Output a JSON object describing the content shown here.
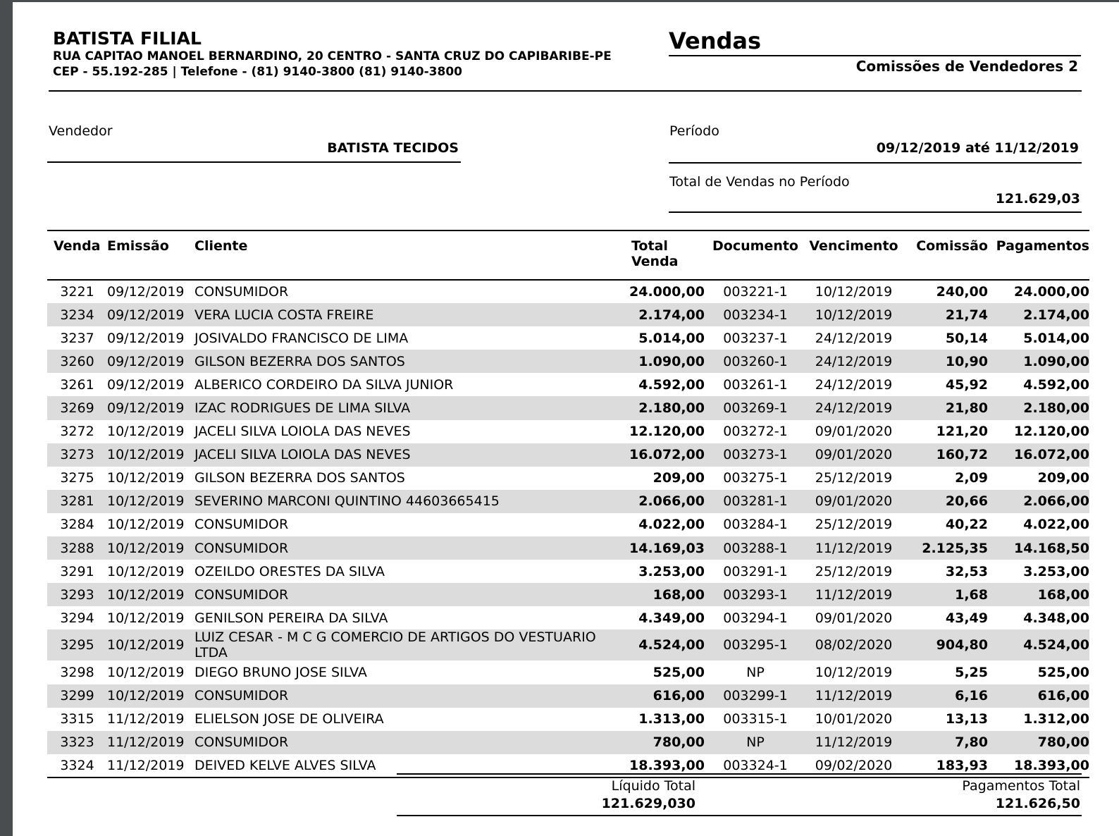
{
  "company": {
    "name": "BATISTA FILIAL",
    "address": "RUA CAPITAO MANOEL BERNARDINO, 20 CENTRO - SANTA CRUZ DO CAPIBARIBE-PE",
    "contact": "CEP - 55.192-285 | Telefone - (81) 9140-3800 (81) 9140-3800"
  },
  "report": {
    "title": "Vendas",
    "subtitle": "Comissões de Vendedores 2"
  },
  "seller": {
    "label": "Vendedor",
    "value": "BATISTA TECIDOS"
  },
  "period": {
    "label": "Período",
    "value": "09/12/2019 até 11/12/2019"
  },
  "total_sales": {
    "label": "Total de Vendas no Período",
    "value": "121.629,03"
  },
  "table": {
    "headers": [
      "Venda",
      "Emissão",
      "Cliente",
      "Total Venda",
      "Documento",
      "Vencimento",
      "Comissão",
      "Pagamentos"
    ],
    "rows": [
      [
        "3221",
        "09/12/2019",
        "CONSUMIDOR",
        "24.000,00",
        "003221-1",
        "10/12/2019",
        "240,00",
        "24.000,00"
      ],
      [
        "3234",
        "09/12/2019",
        "VERA LUCIA COSTA FREIRE",
        "2.174,00",
        "003234-1",
        "10/12/2019",
        "21,74",
        "2.174,00"
      ],
      [
        "3237",
        "09/12/2019",
        "JOSIVALDO FRANCISCO DE LIMA",
        "5.014,00",
        "003237-1",
        "24/12/2019",
        "50,14",
        "5.014,00"
      ],
      [
        "3260",
        "09/12/2019",
        "GILSON BEZERRA DOS SANTOS",
        "1.090,00",
        "003260-1",
        "24/12/2019",
        "10,90",
        "1.090,00"
      ],
      [
        "3261",
        "09/12/2019",
        "ALBERICO CORDEIRO DA SILVA JUNIOR",
        "4.592,00",
        "003261-1",
        "24/12/2019",
        "45,92",
        "4.592,00"
      ],
      [
        "3269",
        "09/12/2019",
        "IZAC RODRIGUES DE LIMA SILVA",
        "2.180,00",
        "003269-1",
        "24/12/2019",
        "21,80",
        "2.180,00"
      ],
      [
        "3272",
        "10/12/2019",
        "JACELI SILVA LOIOLA DAS NEVES",
        "12.120,00",
        "003272-1",
        "09/01/2020",
        "121,20",
        "12.120,00"
      ],
      [
        "3273",
        "10/12/2019",
        "JACELI SILVA LOIOLA DAS NEVES",
        "16.072,00",
        "003273-1",
        "09/01/2020",
        "160,72",
        "16.072,00"
      ],
      [
        "3275",
        "10/12/2019",
        "GILSON BEZERRA DOS SANTOS",
        "209,00",
        "003275-1",
        "25/12/2019",
        "2,09",
        "209,00"
      ],
      [
        "3281",
        "10/12/2019",
        "SEVERINO MARCONI QUINTINO 44603665415",
        "2.066,00",
        "003281-1",
        "09/01/2020",
        "20,66",
        "2.066,00"
      ],
      [
        "3284",
        "10/12/2019",
        "CONSUMIDOR",
        "4.022,00",
        "003284-1",
        "25/12/2019",
        "40,22",
        "4.022,00"
      ],
      [
        "3288",
        "10/12/2019",
        "CONSUMIDOR",
        "14.169,03",
        "003288-1",
        "11/12/2019",
        "2.125,35",
        "14.168,50"
      ],
      [
        "3291",
        "10/12/2019",
        "OZEILDO ORESTES DA SILVA",
        "3.253,00",
        "003291-1",
        "25/12/2019",
        "32,53",
        "3.253,00"
      ],
      [
        "3293",
        "10/12/2019",
        "CONSUMIDOR",
        "168,00",
        "003293-1",
        "11/12/2019",
        "1,68",
        "168,00"
      ],
      [
        "3294",
        "10/12/2019",
        "GENILSON PEREIRA DA SILVA",
        "4.349,00",
        "003294-1",
        "09/01/2020",
        "43,49",
        "4.348,00"
      ],
      [
        "3295",
        "10/12/2019",
        "LUIZ CESAR - M C G COMERCIO DE ARTIGOS DO VESTUARIO LTDA",
        "4.524,00",
        "003295-1",
        "08/02/2020",
        "904,80",
        "4.524,00"
      ],
      [
        "3298",
        "10/12/2019",
        "DIEGO BRUNO JOSE SILVA",
        "525,00",
        "NP",
        "10/12/2019",
        "5,25",
        "525,00"
      ],
      [
        "3299",
        "10/12/2019",
        "CONSUMIDOR",
        "616,00",
        "003299-1",
        "11/12/2019",
        "6,16",
        "616,00"
      ],
      [
        "3315",
        "11/12/2019",
        "ELIELSON JOSE DE OLIVEIRA",
        "1.313,00",
        "003315-1",
        "10/01/2020",
        "13,13",
        "1.312,00"
      ],
      [
        "3323",
        "11/12/2019",
        "CONSUMIDOR",
        "780,00",
        "NP",
        "11/12/2019",
        "7,80",
        "780,00"
      ],
      [
        "3324",
        "11/12/2019",
        "DEIVED KELVE ALVES SILVA",
        "18.393,00",
        "003324-1",
        "09/02/2020",
        "183,93",
        "18.393,00"
      ]
    ]
  },
  "footer": {
    "net_total_label": "Líquido Total",
    "net_total_value": "121.629,030",
    "payments_total_label": "Pagamentos Total",
    "payments_total_value": "121.626,50"
  }
}
